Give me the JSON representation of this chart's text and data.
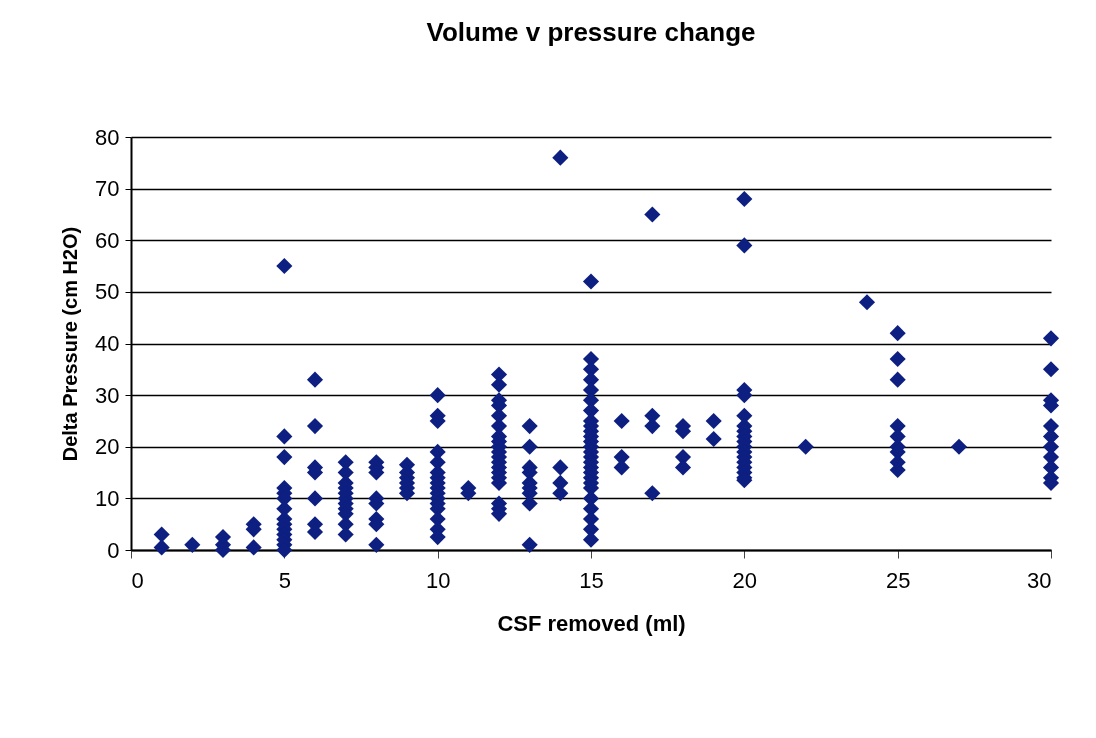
{
  "chart_data": {
    "type": "scatter",
    "title": "Volume v pressure change",
    "xlabel": "CSF removed (ml)",
    "ylabel": "Delta Pressure (cm H2O)",
    "x": [
      1,
      1,
      2,
      3,
      3,
      3,
      4,
      4,
      4,
      5,
      5,
      5,
      5,
      5,
      5,
      5,
      5,
      5,
      5,
      5,
      5,
      5,
      5,
      6,
      6,
      6,
      6,
      6,
      6,
      6,
      7,
      7,
      7,
      7,
      7,
      7,
      7,
      7,
      7,
      7,
      7,
      8,
      8,
      8,
      8,
      8,
      8,
      8,
      8,
      9,
      9,
      9,
      9,
      9,
      9,
      10,
      10,
      10,
      10,
      10,
      10,
      10,
      10,
      10,
      10,
      10,
      10,
      10,
      10,
      10,
      10,
      11,
      11,
      12,
      12,
      12,
      12,
      12,
      12,
      12,
      12,
      12,
      12,
      12,
      12,
      12,
      12,
      12,
      12,
      12,
      12,
      12,
      13,
      13,
      13,
      13,
      13,
      13,
      13,
      13,
      13,
      14,
      14,
      14,
      14,
      15,
      15,
      15,
      15,
      15,
      15,
      15,
      15,
      15,
      15,
      15,
      15,
      15,
      15,
      15,
      15,
      15,
      15,
      15,
      15,
      15,
      15,
      15,
      15,
      15,
      15,
      16,
      16,
      16,
      17,
      17,
      17,
      17,
      18,
      18,
      18,
      18,
      19,
      19,
      20,
      20,
      20,
      20,
      20,
      20,
      20,
      20,
      20,
      20,
      20,
      20,
      20,
      20,
      20,
      20,
      20,
      22,
      24,
      25,
      25,
      25,
      25,
      25,
      25,
      25,
      25,
      25,
      27,
      30,
      30,
      30,
      30,
      30,
      30,
      30,
      30,
      30,
      30,
      30
    ],
    "values": [
      3,
      0.5,
      1,
      2.5,
      1,
      0,
      5,
      4,
      0.5,
      55,
      22,
      18,
      12,
      11,
      10,
      8,
      6,
      5,
      4,
      3,
      2,
      1,
      0,
      33,
      24,
      16,
      15,
      10,
      5,
      3.5,
      17,
      15,
      13,
      12,
      11,
      10,
      9,
      8,
      7,
      5,
      3,
      17,
      16,
      15,
      10,
      9,
      6,
      5,
      1,
      16.5,
      15,
      14,
      13,
      12,
      11,
      30,
      26,
      25,
      19,
      17,
      15,
      14,
      13,
      12,
      11,
      10,
      9,
      8,
      6,
      4,
      2.5,
      12,
      11,
      34,
      32,
      29,
      28,
      26,
      24,
      22,
      21,
      20,
      19,
      18,
      17,
      16,
      15,
      14,
      13,
      9,
      8,
      7,
      24,
      20,
      16,
      15,
      13,
      12,
      11,
      9,
      1,
      76,
      16,
      13,
      11,
      52,
      37,
      35,
      33,
      31,
      29,
      27,
      25,
      24,
      23,
      22,
      21,
      20,
      19,
      18,
      17,
      16,
      15,
      14,
      13,
      12,
      10,
      8,
      6,
      4,
      2,
      25,
      18,
      16,
      65,
      26,
      24,
      11,
      24,
      23,
      18,
      16,
      25,
      21.5,
      68,
      59,
      31,
      30,
      26,
      24,
      23,
      22,
      21,
      20,
      19,
      18,
      17,
      16,
      15,
      14,
      13.5,
      20,
      48,
      42,
      37,
      33,
      24,
      22,
      20,
      19,
      17,
      15.5,
      20,
      41,
      35,
      29,
      28,
      24,
      22,
      20,
      18,
      16,
      14,
      13
    ],
    "color": "#0d1f80",
    "marker": "diamond",
    "grid": "y",
    "xlim": [
      0,
      30
    ],
    "xticks": [
      0,
      5,
      10,
      15,
      20,
      25,
      30
    ],
    "ylim": [
      0,
      80
    ],
    "yticks": [
      0,
      10,
      20,
      30,
      40,
      50,
      60,
      70,
      80
    ]
  }
}
